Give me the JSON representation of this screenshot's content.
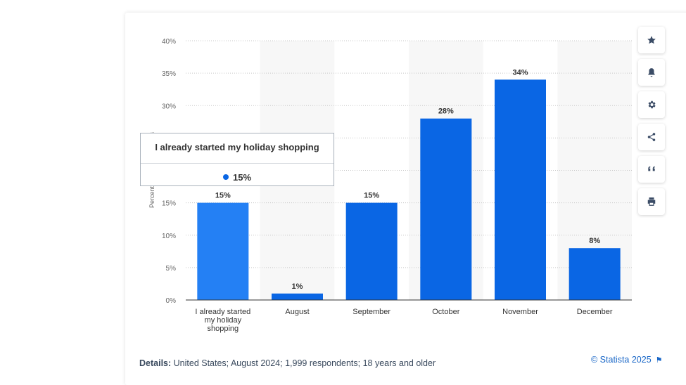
{
  "chart_data": {
    "type": "bar",
    "categories": [
      [
        "I already started",
        "my holiday",
        "shopping"
      ],
      [
        "August"
      ],
      [
        "September"
      ],
      [
        "October"
      ],
      [
        "November"
      ],
      [
        "December"
      ]
    ],
    "values": [
      15,
      1,
      15,
      28,
      34,
      8
    ],
    "data_labels": [
      "15%",
      "1%",
      "15%",
      "28%",
      "34%",
      "8%"
    ],
    "ylim": [
      0,
      40
    ],
    "yticks": [
      "0%",
      "5%",
      "10%",
      "15%",
      "30%",
      "35%",
      "40%"
    ],
    "ytick_values": [
      0,
      5,
      10,
      15,
      30,
      35,
      40
    ],
    "ylabel": "Percentage of respondents",
    "grid": true,
    "highlighted_index": 0,
    "bar_color": "#0a66e4",
    "highlight_color": "#2480f4"
  },
  "tooltip": {
    "title": "I already started my holiday shopping",
    "value": "15%"
  },
  "toolbar": {
    "icons": [
      "star-icon",
      "bell-icon",
      "gear-icon",
      "share-icon",
      "quote-icon",
      "print-icon"
    ]
  },
  "footer": {
    "details_label": "Details:",
    "details_text": "United States; August 2024; 1,999 respondents; 18 years and older",
    "credit": "© Statista 2025"
  }
}
